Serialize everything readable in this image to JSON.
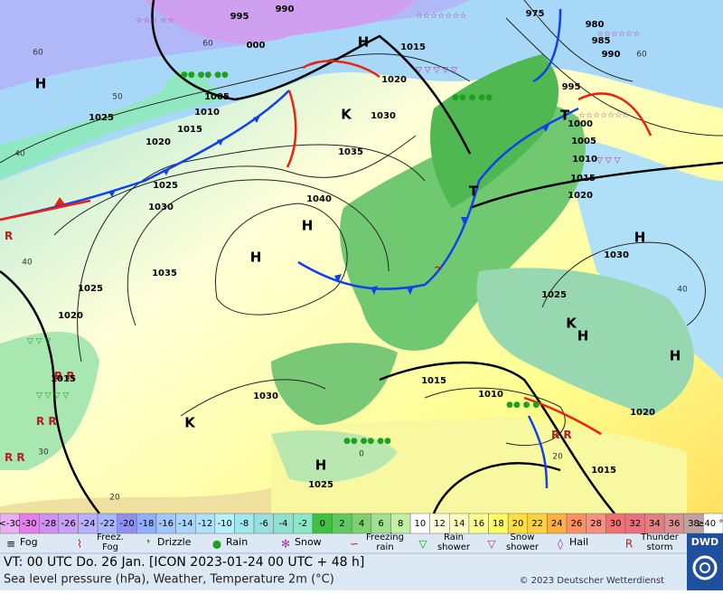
{
  "map": {
    "isobar_labels": [
      995,
      990,
      "000",
      975,
      980,
      985,
      990,
      1015,
      1020,
      995,
      1005,
      1010,
      1015,
      1025,
      1020,
      1030,
      1000,
      1005,
      1010,
      1015,
      1020,
      1035,
      1025,
      1030,
      1040,
      1035,
      1025,
      1030,
      1020,
      1025,
      1015,
      1015,
      1010,
      1030,
      1020,
      1015,
      1025
    ],
    "pressure_centers": [
      "H",
      "H",
      "H",
      "H",
      "H",
      "H",
      "H",
      "H",
      "K",
      "K",
      "K",
      "T",
      "T"
    ],
    "temperature_labels": [
      60,
      50,
      40,
      40,
      30,
      20,
      40,
      0,
      20,
      60,
      60
    ]
  },
  "legend": {
    "scale": [
      {
        "label": "<-30",
        "color": "#e8b0f0"
      },
      {
        "label": "-30",
        "color": "#e080e8"
      },
      {
        "label": "-28",
        "color": "#d090f0"
      },
      {
        "label": "-26",
        "color": "#c8a0f8"
      },
      {
        "label": "-24",
        "color": "#b8b0ff"
      },
      {
        "label": "-22",
        "color": "#a8b8ff"
      },
      {
        "label": "-20",
        "color": "#9090f0"
      },
      {
        "label": "-18",
        "color": "#90b0ff"
      },
      {
        "label": "-16",
        "color": "#a0c8ff"
      },
      {
        "label": "-14",
        "color": "#a8d8ff"
      },
      {
        "label": "-12",
        "color": "#b0e0ff"
      },
      {
        "label": "-10",
        "color": "#b8f0ff"
      },
      {
        "label": "-8",
        "color": "#a0e8f0"
      },
      {
        "label": "-6",
        "color": "#98e0e0"
      },
      {
        "label": "-4",
        "color": "#90e0d0"
      },
      {
        "label": "-2",
        "color": "#88e8c8"
      },
      {
        "label": "0",
        "color": "#40c040"
      },
      {
        "label": "2",
        "color": "#60c860"
      },
      {
        "label": "4",
        "color": "#80d070"
      },
      {
        "label": "6",
        "color": "#a0e090"
      },
      {
        "label": "8",
        "color": "#c0f0a0"
      },
      {
        "label": "10",
        "color": "#ffffff"
      },
      {
        "label": "12",
        "color": "#ffffe0"
      },
      {
        "label": "14",
        "color": "#ffffc0"
      },
      {
        "label": "16",
        "color": "#ffff90"
      },
      {
        "label": "18",
        "color": "#ffff60"
      },
      {
        "label": "20",
        "color": "#ffe040"
      },
      {
        "label": "22",
        "color": "#ffd040"
      },
      {
        "label": "24",
        "color": "#ffb040"
      },
      {
        "label": "26",
        "color": "#ff9060"
      },
      {
        "label": "28",
        "color": "#f89080"
      },
      {
        "label": "30",
        "color": "#f07070"
      },
      {
        "label": "32",
        "color": "#e87080"
      },
      {
        "label": "34",
        "color": "#e08080"
      },
      {
        "label": "36",
        "color": "#d89090"
      },
      {
        "label": "38",
        "color": "#c0a0a0"
      },
      {
        "label": "≥40 °C",
        "color": "#ffffff"
      }
    ],
    "weather": [
      "Fog",
      "Freez. Fog",
      "Drizzle",
      "Rain",
      "Snow",
      "Freezing rain",
      "Rain shower",
      "Snow shower",
      "Hail",
      "Thunder storm"
    ]
  },
  "footer": {
    "valid_time": "VT: 00 UTC Do.   26 Jan. [ICON 2023-01-24  00 UTC + 48 h]",
    "description": "Sea level pressure (hPa), Weather, Temperature 2m (°C)",
    "copyright": "© 2023 Deutscher Wetterdienst",
    "logo": "DWD"
  }
}
